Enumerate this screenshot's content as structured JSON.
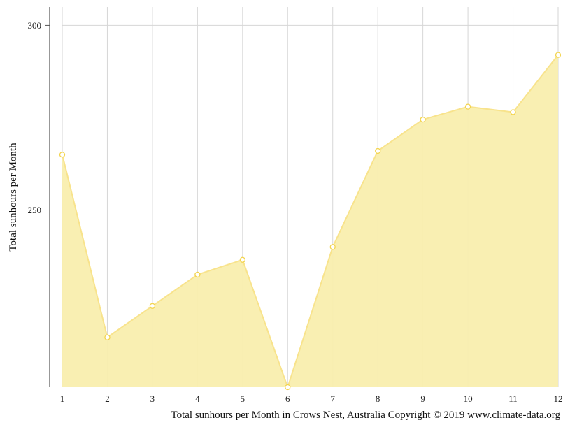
{
  "chart_data": {
    "type": "area",
    "x": [
      1,
      2,
      3,
      4,
      5,
      6,
      7,
      8,
      9,
      10,
      11,
      12
    ],
    "series": [
      {
        "values": [
          265,
          215.5,
          224,
          232.5,
          236.5,
          202,
          240,
          266,
          274.5,
          278,
          276.5,
          292
        ]
      }
    ],
    "xlabel": "",
    "ylabel": "Total sunhours per Month",
    "yticks": [
      250,
      300
    ],
    "ylim": [
      202,
      305
    ],
    "xlim": [
      1,
      12
    ],
    "grid": true,
    "caption": "Total sunhours per Month in Crows Nest, Australia Copyright © 2019 www.climate-data.org",
    "colors": {
      "fill": "#f9eeae",
      "line": "#f8e38c",
      "marker_stroke": "#f3d44e",
      "marker_fill": "#ffffff",
      "grid": "#d6d6d6",
      "axis": "#555555"
    }
  }
}
